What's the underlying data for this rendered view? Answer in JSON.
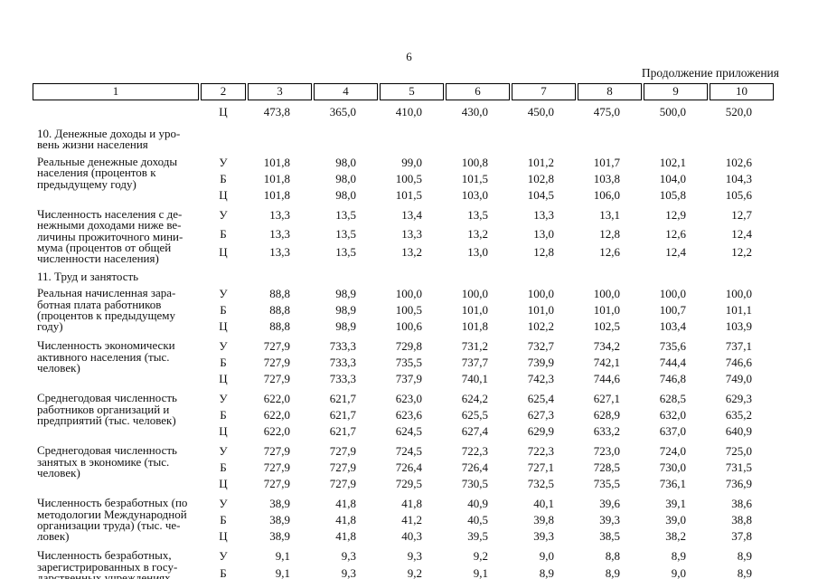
{
  "page": {
    "number": "6",
    "continuation_note": "Продолжение приложения"
  },
  "table": {
    "header_cols": [
      "1",
      "2",
      "3",
      "4",
      "5",
      "6",
      "7",
      "8",
      "9",
      "10"
    ],
    "blocks": [
      {
        "type": "indicator",
        "label": "",
        "rows": [
          {
            "code": "Ц",
            "values": [
              "473,8",
              "365,0",
              "410,0",
              "430,0",
              "450,0",
              "475,0",
              "500,0",
              "520,0"
            ]
          }
        ]
      },
      {
        "type": "section",
        "label": "10. Денежные доходы и уро-\nвень жизни населения"
      },
      {
        "type": "indicator",
        "label": "Реальные денежные доходы\nнаселения (процентов к\nпредыдущему году)",
        "rows": [
          {
            "code": "У",
            "values": [
              "101,8",
              "98,0",
              "99,0",
              "100,8",
              "101,2",
              "101,7",
              "102,1",
              "102,6"
            ]
          },
          {
            "code": "Б",
            "values": [
              "101,8",
              "98,0",
              "100,5",
              "101,5",
              "102,8",
              "103,8",
              "104,0",
              "104,3"
            ]
          },
          {
            "code": "Ц",
            "values": [
              "101,8",
              "98,0",
              "101,5",
              "103,0",
              "104,5",
              "106,0",
              "105,8",
              "105,6"
            ]
          }
        ]
      },
      {
        "type": "indicator",
        "label": "Численность населения с де-\nнежными доходами ниже ве-\nличины прожиточного мини-\nмума (процентов от общей\nчисленности населения)",
        "rows": [
          {
            "code": "У",
            "values": [
              "13,3",
              "13,5",
              "13,4",
              "13,5",
              "13,3",
              "13,1",
              "12,9",
              "12,7"
            ]
          },
          {
            "code": "Б",
            "values": [
              "13,3",
              "13,5",
              "13,3",
              "13,2",
              "13,0",
              "12,8",
              "12,6",
              "12,4"
            ]
          },
          {
            "code": "Ц",
            "values": [
              "13,3",
              "13,5",
              "13,2",
              "13,0",
              "12,8",
              "12,6",
              "12,4",
              "12,2"
            ]
          }
        ]
      },
      {
        "type": "section",
        "label": "11. Труд и занятость"
      },
      {
        "type": "indicator",
        "label": "Реальная начисленная зара-\nботная плата работников\n(процентов к предыдущему\nгоду)",
        "rows": [
          {
            "code": "У",
            "values": [
              "88,8",
              "98,9",
              "100,0",
              "100,0",
              "100,0",
              "100,0",
              "100,0",
              "100,0"
            ]
          },
          {
            "code": "Б",
            "values": [
              "88,8",
              "98,9",
              "100,5",
              "101,0",
              "101,0",
              "101,0",
              "100,7",
              "101,1"
            ]
          },
          {
            "code": "Ц",
            "values": [
              "88,8",
              "98,9",
              "100,6",
              "101,8",
              "102,2",
              "102,5",
              "103,4",
              "103,9"
            ]
          }
        ]
      },
      {
        "type": "indicator",
        "label": "Численность экономически\nактивного населения (тыс.\nчеловек)",
        "rows": [
          {
            "code": "У",
            "values": [
              "727,9",
              "733,3",
              "729,8",
              "731,2",
              "732,7",
              "734,2",
              "735,6",
              "737,1"
            ]
          },
          {
            "code": "Б",
            "values": [
              "727,9",
              "733,3",
              "735,5",
              "737,7",
              "739,9",
              "742,1",
              "744,4",
              "746,6"
            ]
          },
          {
            "code": "Ц",
            "values": [
              "727,9",
              "733,3",
              "737,9",
              "740,1",
              "742,3",
              "744,6",
              "746,8",
              "749,0"
            ]
          }
        ]
      },
      {
        "type": "indicator",
        "label": "Среднегодовая численность\nработников организаций и\nпредприятий (тыс. человек)",
        "rows": [
          {
            "code": "У",
            "values": [
              "622,0",
              "621,7",
              "623,0",
              "624,2",
              "625,4",
              "627,1",
              "628,5",
              "629,3"
            ]
          },
          {
            "code": "Б",
            "values": [
              "622,0",
              "621,7",
              "623,6",
              "625,5",
              "627,3",
              "628,9",
              "632,0",
              "635,2"
            ]
          },
          {
            "code": "Ц",
            "values": [
              "622,0",
              "621,7",
              "624,5",
              "627,4",
              "629,9",
              "633,2",
              "637,0",
              "640,9"
            ]
          }
        ]
      },
      {
        "type": "indicator",
        "label": "Среднегодовая численность\nзанятых в экономике (тыс.\nчеловек)",
        "rows": [
          {
            "code": "У",
            "values": [
              "727,9",
              "727,9",
              "724,5",
              "722,3",
              "722,3",
              "723,0",
              "724,0",
              "725,0"
            ]
          },
          {
            "code": "Б",
            "values": [
              "727,9",
              "727,9",
              "726,4",
              "726,4",
              "727,1",
              "728,5",
              "730,0",
              "731,5"
            ]
          },
          {
            "code": "Ц",
            "values": [
              "727,9",
              "727,9",
              "729,5",
              "730,5",
              "732,5",
              "735,5",
              "736,1",
              "736,9"
            ]
          }
        ]
      },
      {
        "type": "indicator",
        "label": "Численность безработных (по\nметодологии Международной\nорганизации труда) (тыс. че-\nловек)",
        "rows": [
          {
            "code": "У",
            "values": [
              "38,9",
              "41,8",
              "41,8",
              "40,9",
              "40,1",
              "39,6",
              "39,1",
              "38,6"
            ]
          },
          {
            "code": "Б",
            "values": [
              "38,9",
              "41,8",
              "41,2",
              "40,5",
              "39,8",
              "39,3",
              "39,0",
              "38,8"
            ]
          },
          {
            "code": "Ц",
            "values": [
              "38,9",
              "41,8",
              "40,3",
              "39,5",
              "39,3",
              "38,5",
              "38,2",
              "37,8"
            ]
          }
        ]
      },
      {
        "type": "indicator",
        "label": "Численность безработных,\nзарегистрированных в госу-\nдарственных учреждениях",
        "rows": [
          {
            "code": "У",
            "values": [
              "9,1",
              "9,3",
              "9,3",
              "9,2",
              "9,0",
              "8,8",
              "8,9",
              "8,9"
            ]
          },
          {
            "code": "Б",
            "values": [
              "9,1",
              "9,3",
              "9,2",
              "9,1",
              "8,9",
              "8,9",
              "9,0",
              "8,9"
            ]
          }
        ]
      }
    ]
  }
}
